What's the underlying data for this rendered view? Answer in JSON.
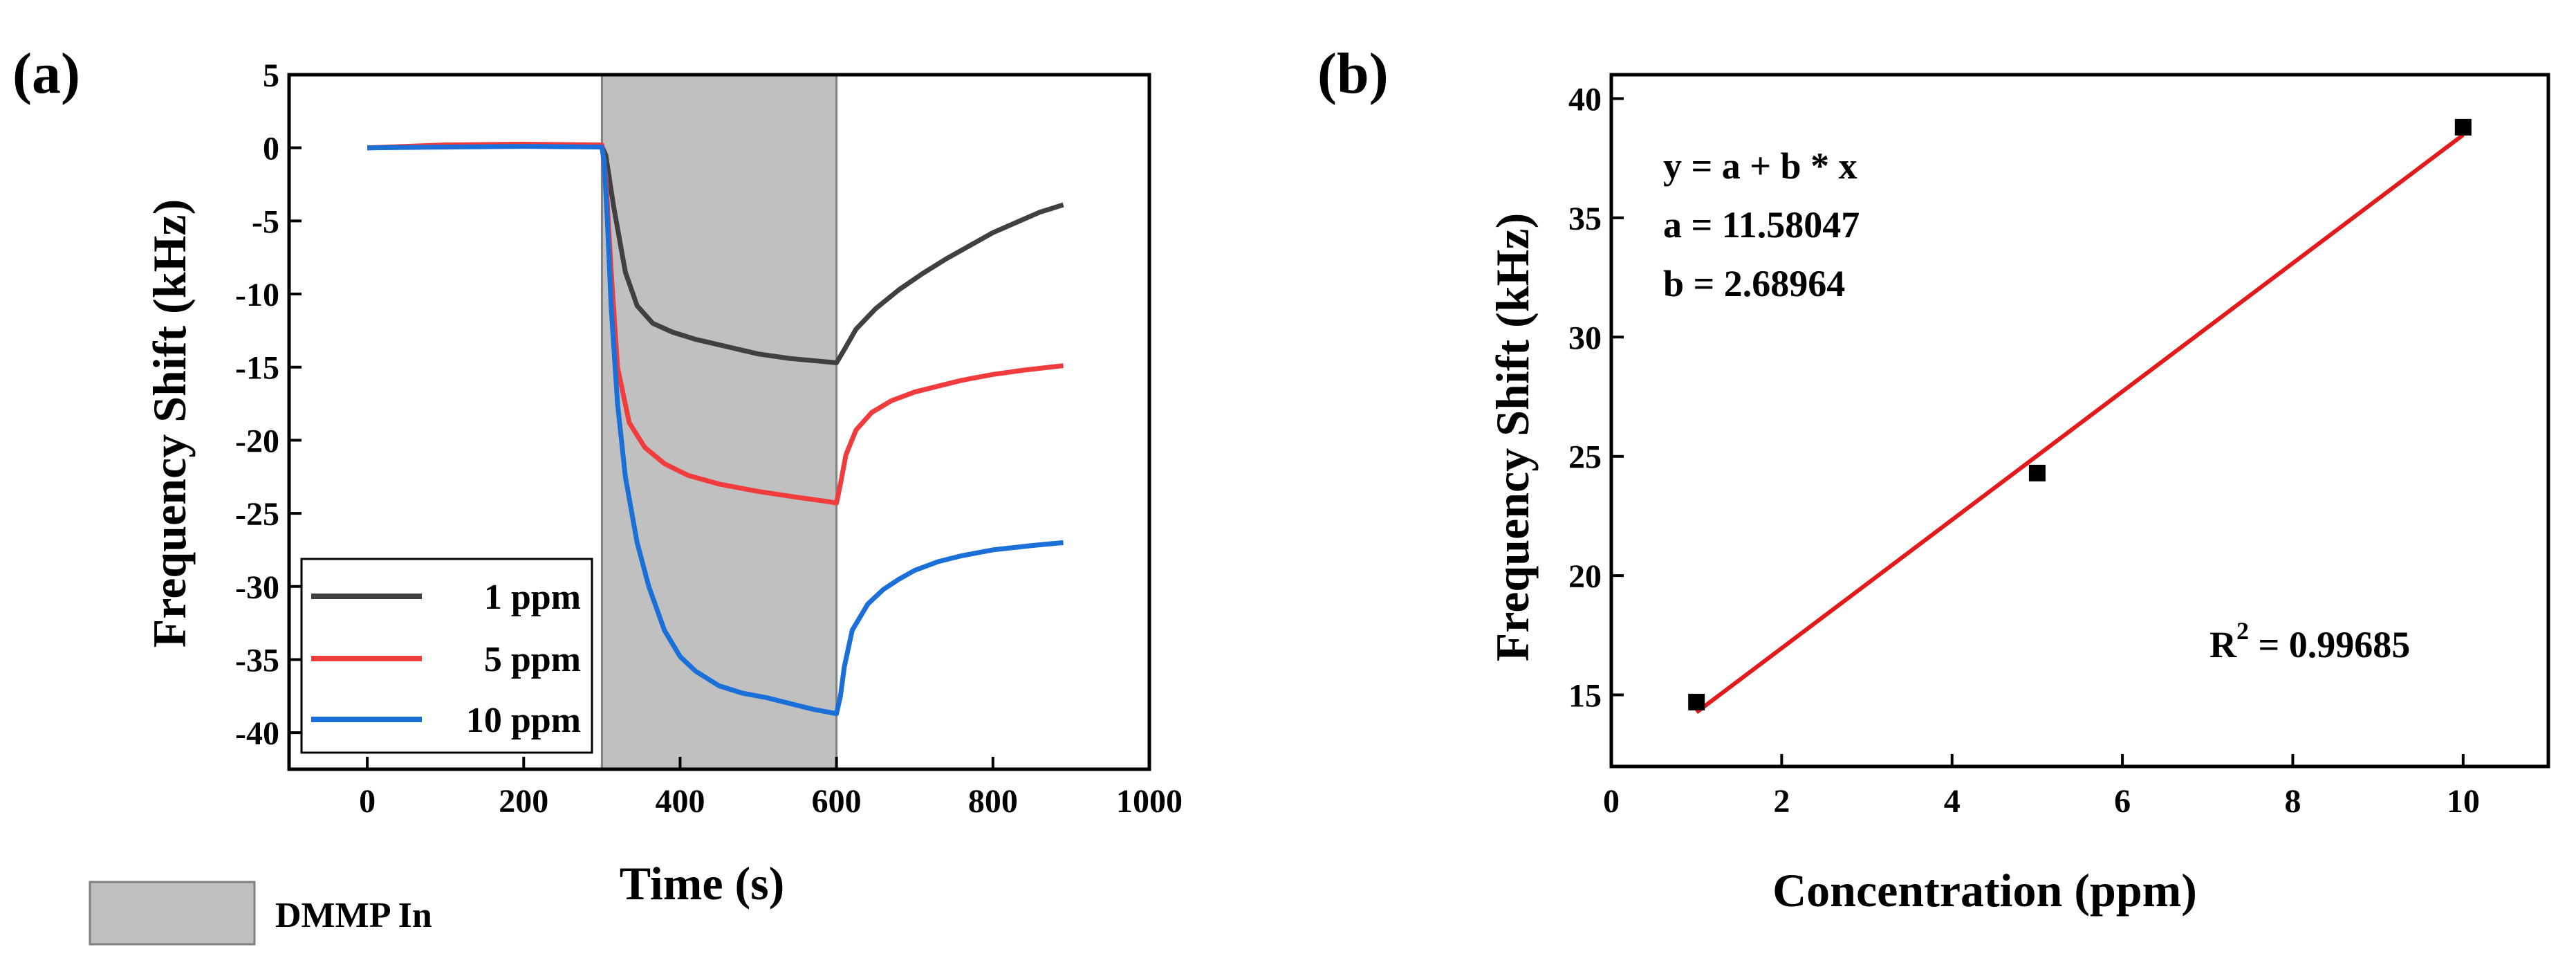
{
  "chart_data": [
    {
      "panel_label": "(a)",
      "type": "line",
      "xlabel": "Time (s)",
      "ylabel": "Frequency Shift (kHz)",
      "xlim": [
        -100,
        1000
      ],
      "ylim": [
        -42.5,
        5
      ],
      "xticks": [
        0,
        200,
        400,
        600,
        800,
        1000
      ],
      "yticks": [
        5,
        0,
        -5,
        -10,
        -15,
        -20,
        -25,
        -30,
        -35,
        -40
      ],
      "shaded_region": {
        "x": [
          300,
          600
        ],
        "color": "#c0c0c0",
        "label": "DMMP In"
      },
      "legend_position": "bottom-left",
      "series": [
        {
          "name": "1 ppm",
          "color": "#404040",
          "x": [
            0,
            100,
            200,
            300,
            305,
            315,
            330,
            345,
            365,
            390,
            420,
            460,
            500,
            540,
            580,
            600,
            610,
            625,
            650,
            680,
            710,
            740,
            770,
            800,
            830,
            860,
            890
          ],
          "y": [
            0.0,
            0.1,
            0.15,
            0.1,
            -0.5,
            -4.0,
            -8.5,
            -10.8,
            -12.0,
            -12.6,
            -13.1,
            -13.6,
            -14.1,
            -14.4,
            -14.6,
            -14.7,
            -13.8,
            -12.4,
            -11.0,
            -9.7,
            -8.6,
            -7.6,
            -6.7,
            -5.8,
            -5.1,
            -4.4,
            -3.9
          ]
        },
        {
          "name": "5 ppm",
          "color": "#f03c3c",
          "x": [
            0,
            100,
            200,
            300,
            305,
            312,
            320,
            335,
            355,
            380,
            410,
            450,
            500,
            550,
            590,
            600,
            605,
            612,
            625,
            645,
            670,
            700,
            730,
            760,
            800,
            840,
            890
          ],
          "y": [
            0.0,
            0.2,
            0.25,
            0.2,
            -2.0,
            -8.5,
            -15.0,
            -18.8,
            -20.5,
            -21.6,
            -22.4,
            -23.0,
            -23.5,
            -23.9,
            -24.2,
            -24.3,
            -23.0,
            -21.0,
            -19.3,
            -18.1,
            -17.3,
            -16.7,
            -16.3,
            -15.9,
            -15.5,
            -15.2,
            -14.9
          ]
        },
        {
          "name": "10 ppm",
          "color": "#1a6fd8",
          "x": [
            0,
            100,
            200,
            300,
            303,
            307,
            312,
            320,
            330,
            345,
            360,
            380,
            400,
            420,
            450,
            480,
            510,
            540,
            570,
            590,
            600,
            605,
            610,
            620,
            640,
            660,
            680,
            700,
            730,
            760,
            800,
            850,
            890
          ],
          "y": [
            0.0,
            0.05,
            0.1,
            0.05,
            -1.0,
            -5.0,
            -11.0,
            -17.5,
            -22.5,
            -27.0,
            -30.0,
            -33.0,
            -34.8,
            -35.8,
            -36.8,
            -37.3,
            -37.6,
            -38.0,
            -38.4,
            -38.6,
            -38.7,
            -37.5,
            -35.5,
            -33.0,
            -31.2,
            -30.2,
            -29.5,
            -28.9,
            -28.3,
            -27.9,
            -27.5,
            -27.2,
            -27.0
          ]
        }
      ]
    },
    {
      "panel_label": "(b)",
      "type": "scatter",
      "xlabel": "Concentration (ppm)",
      "ylabel": "Frequency Shift (kHz)",
      "xlim": [
        0,
        11
      ],
      "ylim": [
        12,
        41
      ],
      "xticks": [
        0,
        2,
        4,
        6,
        8,
        10
      ],
      "yticks": [
        15,
        20,
        25,
        30,
        35,
        40
      ],
      "points": {
        "x": [
          1,
          5,
          10
        ],
        "y": [
          14.7,
          24.3,
          38.8
        ],
        "color": "#000000"
      },
      "fit": {
        "a": 11.58047,
        "b": 2.68964,
        "x_range": [
          1,
          10
        ],
        "color": "#e31a1c"
      },
      "annotations": {
        "equation": "y = a + b * x",
        "a_text": "a = 11.58047",
        "b_text": "b = 2.68964",
        "r2_prefix": "R",
        "r2_sup": "2",
        "r2_value": " = 0.99685"
      }
    }
  ]
}
